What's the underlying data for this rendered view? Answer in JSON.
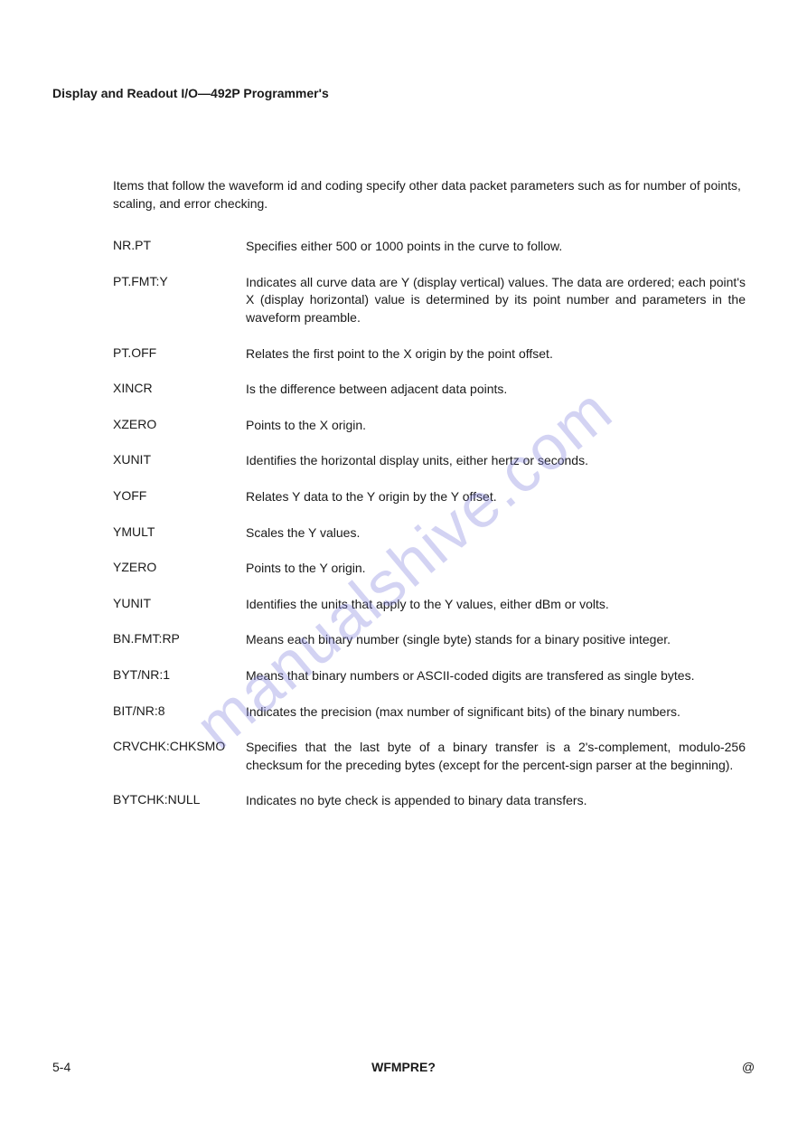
{
  "header": "Display and Readout I/O—492P Programmer's",
  "intro": "Items that follow the waveform id and coding specify other data packet parameters such as for number of points, scaling, and error checking.",
  "definitions": [
    {
      "term": "NR.PT",
      "desc": "Specifies either 500 or 1000 points in the curve to follow."
    },
    {
      "term": "PT.FMT:Y",
      "desc": "Indicates all curve data are Y (display vertical) values. The data are ordered; each point's X (display horizontal) value is determined by its point number and parameters in the waveform preamble."
    },
    {
      "term": "PT.OFF",
      "desc": "Relates the first point to the X origin by the point offset."
    },
    {
      "term": "XINCR",
      "desc": "Is the difference between adjacent data points."
    },
    {
      "term": "XZERO",
      "desc": "Points to the X origin."
    },
    {
      "term": "XUNIT",
      "desc": "Identifies the horizontal display units, either hertz or seconds."
    },
    {
      "term": "YOFF",
      "desc": "Relates Y data to the Y origin by the Y offset."
    },
    {
      "term": "YMULT",
      "desc": "Scales the Y values."
    },
    {
      "term": "YZERO",
      "desc": "Points to the Y origin."
    },
    {
      "term": "YUNIT",
      "desc": "Identifies the units that apply to the Y values, either dBm or volts."
    },
    {
      "term": "BN.FMT:RP",
      "desc": "Means each binary number (single byte) stands for a binary positive integer."
    },
    {
      "term": "BYT/NR:1",
      "desc": "Means that binary numbers or ASCII-coded digits are transfered as single bytes."
    },
    {
      "term": "BIT/NR:8",
      "desc": "Indicates the precision (max number of significant bits) of the binary numbers."
    },
    {
      "term": "CRVCHK:CHKSMO",
      "desc": "Specifies that the last byte of a binary transfer is a 2's-complement, modulo-256 checksum for the preceding bytes (except for the percent-sign parser at the beginning)."
    },
    {
      "term": "BYTCHK:NULL",
      "desc": "Indicates no byte check is appended to binary data transfers."
    }
  ],
  "footer": {
    "left": "5-4",
    "center": "WFMPRE?",
    "right": "@"
  },
  "watermark": "manualshive.com"
}
